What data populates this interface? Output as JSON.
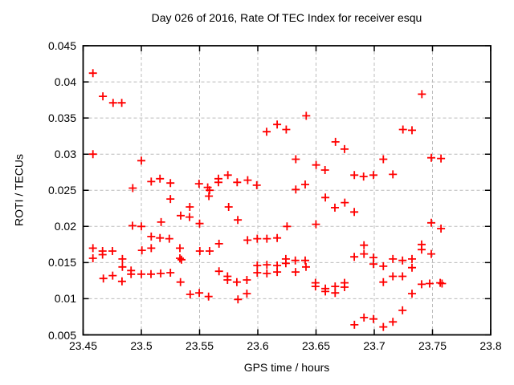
{
  "chart_data": {
    "type": "scatter",
    "title": "Day 026 of 2016, Rate Of TEC Index for receiver esqu",
    "xlabel": "GPS time / hours",
    "ylabel": "ROTI / TECUs",
    "xlim": [
      23.45,
      23.8
    ],
    "ylim": [
      0.005,
      0.045
    ],
    "grid": true,
    "legend": "none",
    "marker": "plus",
    "marker_color": "#ff0000",
    "grid_color": "#bcbcbc",
    "border_color": "#000000",
    "xticks": [
      {
        "value": 23.45,
        "label": "23.45"
      },
      {
        "value": 23.5,
        "label": "23.5"
      },
      {
        "value": 23.55,
        "label": "23.55"
      },
      {
        "value": 23.6,
        "label": "23.6"
      },
      {
        "value": 23.65,
        "label": "23.65"
      },
      {
        "value": 23.7,
        "label": "23.7"
      },
      {
        "value": 23.75,
        "label": "23.75"
      },
      {
        "value": 23.8,
        "label": "23.8"
      }
    ],
    "yticks": [
      {
        "value": 0.005,
        "label": "0.005"
      },
      {
        "value": 0.01,
        "label": "0.01"
      },
      {
        "value": 0.015,
        "label": "0.015"
      },
      {
        "value": 0.02,
        "label": "0.02"
      },
      {
        "value": 0.025,
        "label": "0.025"
      },
      {
        "value": 0.03,
        "label": "0.03"
      },
      {
        "value": 0.035,
        "label": "0.035"
      },
      {
        "value": 0.04,
        "label": "0.04"
      },
      {
        "value": 0.045,
        "label": "0.045"
      }
    ],
    "points": [
      [
        23.4584,
        0.0412
      ],
      [
        23.467,
        0.038
      ],
      [
        23.4757,
        0.0371
      ],
      [
        23.4832,
        0.0371
      ],
      [
        23.4584,
        0.03
      ],
      [
        23.5,
        0.0291
      ],
      [
        23.4926,
        0.0253
      ],
      [
        23.5085,
        0.0262
      ],
      [
        23.516,
        0.0266
      ],
      [
        23.525,
        0.026
      ],
      [
        23.5495,
        0.0259
      ],
      [
        23.557,
        0.0254
      ],
      [
        23.5586,
        0.025
      ],
      [
        23.558,
        0.0242
      ],
      [
        23.5662,
        0.0266
      ],
      [
        23.5662,
        0.0261
      ],
      [
        23.525,
        0.0238
      ],
      [
        23.5416,
        0.0227
      ],
      [
        23.5338,
        0.0215
      ],
      [
        23.5414,
        0.0213
      ],
      [
        23.517,
        0.0206
      ],
      [
        23.4924,
        0.0201
      ],
      [
        23.5,
        0.02
      ],
      [
        23.55,
        0.0204
      ],
      [
        23.5085,
        0.0186
      ],
      [
        23.516,
        0.0184
      ],
      [
        23.524,
        0.0183
      ],
      [
        23.4584,
        0.017
      ],
      [
        23.5085,
        0.017
      ],
      [
        23.5005,
        0.0167
      ],
      [
        23.4667,
        0.0166
      ],
      [
        23.4667,
        0.0161
      ],
      [
        23.4752,
        0.0166
      ],
      [
        23.5331,
        0.017
      ],
      [
        23.4584,
        0.0156
      ],
      [
        23.4837,
        0.0155
      ],
      [
        23.4837,
        0.0144
      ],
      [
        23.5331,
        0.0156
      ],
      [
        23.5345,
        0.0154
      ],
      [
        23.5502,
        0.0166
      ],
      [
        23.5586,
        0.0166
      ],
      [
        23.4674,
        0.0128
      ],
      [
        23.4754,
        0.0132
      ],
      [
        23.4834,
        0.0124
      ],
      [
        23.4912,
        0.0139
      ],
      [
        23.4912,
        0.0134
      ],
      [
        23.5,
        0.0134
      ],
      [
        23.5083,
        0.0134
      ],
      [
        23.5166,
        0.0135
      ],
      [
        23.525,
        0.0136
      ],
      [
        23.5336,
        0.0123
      ],
      [
        23.5419,
        0.0106
      ],
      [
        23.5497,
        0.0108
      ],
      [
        23.5577,
        0.0103
      ],
      [
        23.6416,
        0.0353
      ],
      [
        23.6166,
        0.0341
      ],
      [
        23.6244,
        0.0334
      ],
      [
        23.6076,
        0.0331
      ],
      [
        23.6667,
        0.0317
      ],
      [
        23.6745,
        0.0307
      ],
      [
        23.6326,
        0.0293
      ],
      [
        23.6501,
        0.0285
      ],
      [
        23.6577,
        0.0278
      ],
      [
        23.5743,
        0.0271
      ],
      [
        23.5823,
        0.0261
      ],
      [
        23.5913,
        0.0264
      ],
      [
        23.5991,
        0.0257
      ],
      [
        23.6326,
        0.0251
      ],
      [
        23.6407,
        0.0258
      ],
      [
        23.658,
        0.024
      ],
      [
        23.575,
        0.0227
      ],
      [
        23.6662,
        0.0226
      ],
      [
        23.6747,
        0.0233
      ],
      [
        23.6828,
        0.022
      ],
      [
        23.5828,
        0.0209
      ],
      [
        23.6251,
        0.02
      ],
      [
        23.6499,
        0.0203
      ],
      [
        23.5912,
        0.0181
      ],
      [
        23.5995,
        0.0183
      ],
      [
        23.6078,
        0.0183
      ],
      [
        23.6166,
        0.0184
      ],
      [
        23.5667,
        0.0176
      ],
      [
        23.6828,
        0.0158
      ],
      [
        23.6241,
        0.0155
      ],
      [
        23.6322,
        0.0153
      ],
      [
        23.6407,
        0.0153
      ],
      [
        23.5995,
        0.0146
      ],
      [
        23.6078,
        0.0147
      ],
      [
        23.6166,
        0.0146
      ],
      [
        23.6241,
        0.0149
      ],
      [
        23.6414,
        0.0144
      ],
      [
        23.6324,
        0.0137
      ],
      [
        23.5995,
        0.0136
      ],
      [
        23.6078,
        0.0135
      ],
      [
        23.6166,
        0.0137
      ],
      [
        23.5667,
        0.0138
      ],
      [
        23.574,
        0.0131
      ],
      [
        23.574,
        0.0126
      ],
      [
        23.582,
        0.0123
      ],
      [
        23.5906,
        0.0126
      ],
      [
        23.5906,
        0.0107
      ],
      [
        23.583,
        0.0099
      ],
      [
        23.6495,
        0.0122
      ],
      [
        23.6495,
        0.0117
      ],
      [
        23.658,
        0.0114
      ],
      [
        23.658,
        0.011
      ],
      [
        23.6664,
        0.0117
      ],
      [
        23.6664,
        0.0108
      ],
      [
        23.6745,
        0.0122
      ],
      [
        23.6745,
        0.0116
      ],
      [
        23.683,
        0.0064
      ],
      [
        23.7409,
        0.0383
      ],
      [
        23.7246,
        0.0334
      ],
      [
        23.7324,
        0.0333
      ],
      [
        23.7078,
        0.0293
      ],
      [
        23.749,
        0.0295
      ],
      [
        23.7573,
        0.0294
      ],
      [
        23.6829,
        0.0271
      ],
      [
        23.6908,
        0.0269
      ],
      [
        23.6993,
        0.0271
      ],
      [
        23.716,
        0.0272
      ],
      [
        23.749,
        0.0205
      ],
      [
        23.7573,
        0.0197
      ],
      [
        23.6912,
        0.0174
      ],
      [
        23.7407,
        0.0175
      ],
      [
        23.7407,
        0.0168
      ],
      [
        23.6912,
        0.0162
      ],
      [
        23.6993,
        0.0157
      ],
      [
        23.6993,
        0.0148
      ],
      [
        23.7078,
        0.0145
      ],
      [
        23.716,
        0.0155
      ],
      [
        23.7243,
        0.0153
      ],
      [
        23.7324,
        0.0155
      ],
      [
        23.7324,
        0.0143
      ],
      [
        23.749,
        0.0162
      ],
      [
        23.716,
        0.0131
      ],
      [
        23.7243,
        0.0131
      ],
      [
        23.7078,
        0.0123
      ],
      [
        23.7407,
        0.012
      ],
      [
        23.7476,
        0.0121
      ],
      [
        23.7566,
        0.0122
      ],
      [
        23.7582,
        0.0121
      ],
      [
        23.7324,
        0.0107
      ],
      [
        23.7243,
        0.0084
      ],
      [
        23.6912,
        0.0074
      ],
      [
        23.6993,
        0.0072
      ],
      [
        23.716,
        0.0068
      ],
      [
        23.7078,
        0.0061
      ]
    ]
  }
}
